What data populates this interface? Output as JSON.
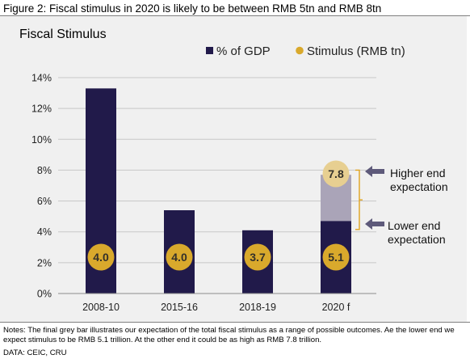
{
  "figure_title": "Figure 2: Fiscal stimulus in 2020 is likely to be between RMB 5tn and RMB 8tn",
  "notes": "Notes: The final grey bar illustrates our expectation of the total fiscal stimulus as a range of possible outcomes. Ae the lower end we expect stimulus to be RMB 5.1 trillion. At the other end it could be as high as RMB 7.8 trillion.",
  "source": "DATA: CEIC, CRU",
  "colors": {
    "bar": "#211a4a",
    "range_bar": "#aaa4b8",
    "bubble": "#d9a92c",
    "bubble_light": "#e7cf91",
    "bracket": "#e0a31e",
    "arrow": "#5e5a7a",
    "panel": "#f0f0f0",
    "grid": "#c7c7c7"
  },
  "chart_data": {
    "type": "bar",
    "title": "Fiscal Stimulus",
    "categories": [
      "2008-10",
      "2015-16",
      "2018-19",
      "2020 f"
    ],
    "series": [
      {
        "name": "% of GDP",
        "values": [
          13.3,
          5.4,
          4.1,
          4.7
        ]
      },
      {
        "name": "Stimulus (RMB tn)",
        "values": [
          4.0,
          4.0,
          3.7,
          5.1
        ]
      }
    ],
    "range_bar": {
      "category": "2020 f",
      "low_pct": 4.7,
      "high_pct": 7.7,
      "high_stimulus": 7.8
    },
    "ylim": [
      0,
      14
    ],
    "y_ticks": [
      0,
      2,
      4,
      6,
      8,
      10,
      12,
      14
    ],
    "y_tick_suffix": "%",
    "grid": true,
    "legend_position": "top-right",
    "annotations": {
      "higher": [
        "Higher end",
        "expectation"
      ],
      "lower": [
        "Lower end",
        "expectation"
      ]
    }
  }
}
